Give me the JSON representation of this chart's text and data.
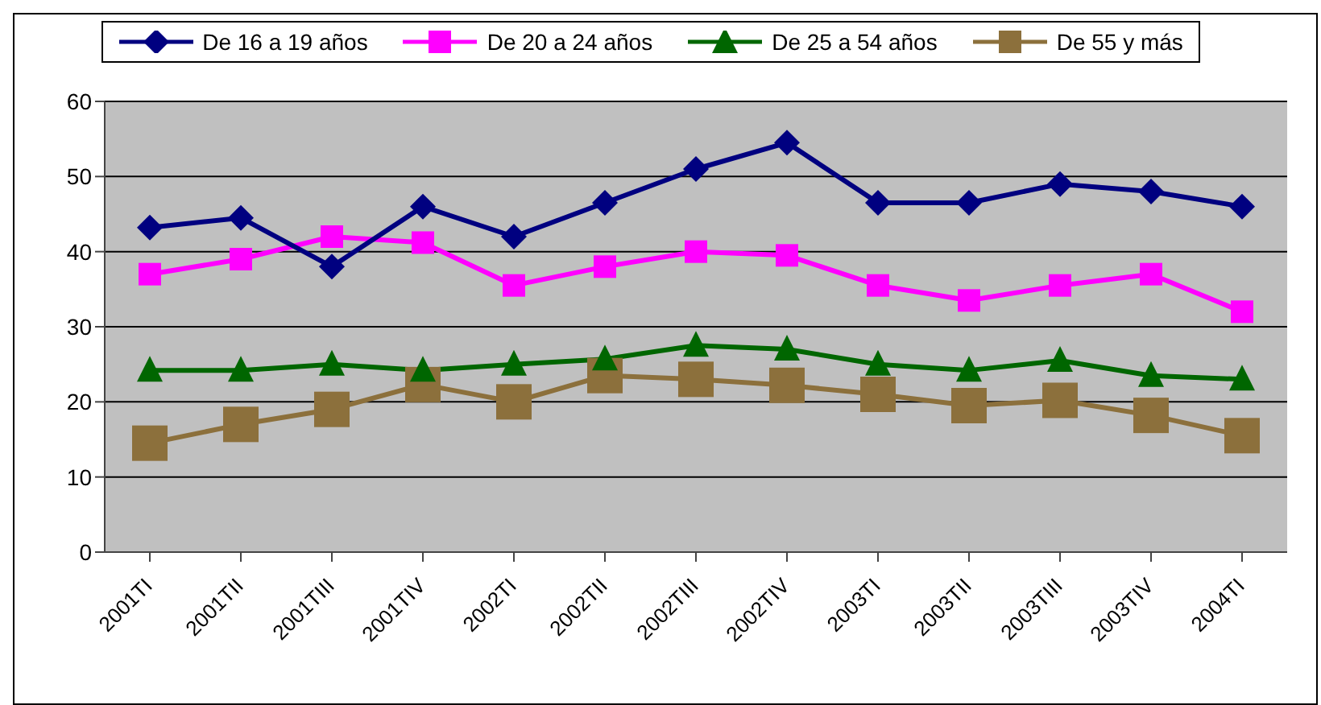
{
  "chart_data": {
    "type": "line",
    "categories": [
      "2001TI",
      "2001TII",
      "2001TIII",
      "2001TIV",
      "2002TI",
      "2002TII",
      "2002TIII",
      "2002TIV",
      "2003TI",
      "2003TII",
      "2003TIII",
      "2003TIV",
      "2004TI"
    ],
    "series": [
      {
        "name": "De 16 a 19 años",
        "color": "#000080",
        "marker": "diamond",
        "values": [
          43.2,
          44.5,
          38,
          46,
          42,
          46.5,
          51,
          54.5,
          46.5,
          46.5,
          49,
          48,
          46
        ]
      },
      {
        "name": "De 20 a 24 años",
        "color": "#ff00ff",
        "marker": "square",
        "values": [
          37,
          39,
          42,
          41.2,
          35.5,
          38,
          40,
          39.5,
          35.5,
          33.5,
          35.5,
          37,
          32
        ]
      },
      {
        "name": "De 25 a 54 años",
        "color": "#006600",
        "marker": "triangle",
        "values": [
          24.2,
          24.2,
          25,
          24.2,
          25,
          25.7,
          27.5,
          27,
          25,
          24.2,
          25.5,
          23.5,
          23
        ]
      },
      {
        "name": "De 55 y más",
        "color": "#8c703c",
        "marker": "square",
        "values": [
          14.5,
          17,
          19,
          22.3,
          20,
          23.5,
          23,
          22.2,
          21,
          19.5,
          20.2,
          18.2,
          15.5
        ]
      }
    ],
    "ylim": [
      0,
      60
    ],
    "yticks": [
      0,
      10,
      20,
      30,
      40,
      50,
      60
    ],
    "grid": "y",
    "legend": "top"
  }
}
